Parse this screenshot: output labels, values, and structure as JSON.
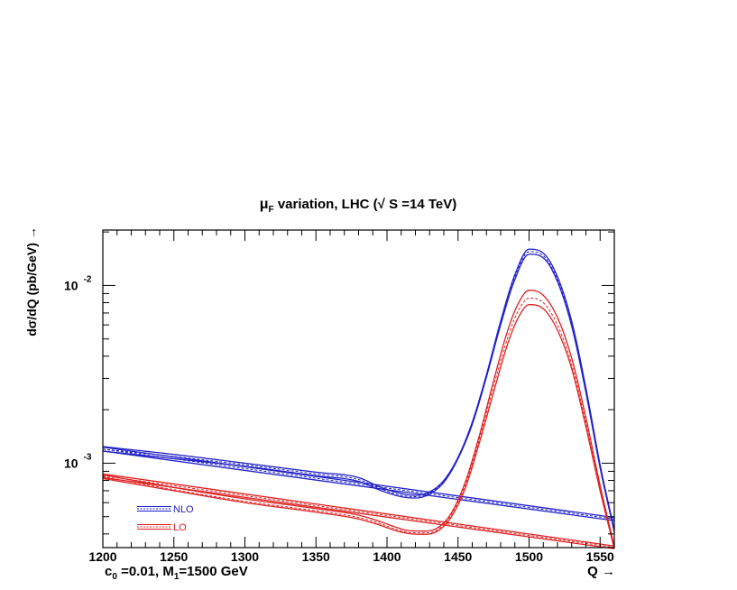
{
  "chart_data": {
    "type": "line",
    "title": {
      "mu": "μ",
      "mu_sub": "F",
      "text": " variation,  LHC (",
      "sqrt": "√",
      "s_text": " S =14 TeV)"
    },
    "ylabel": "dσ/dQ (pb/GeV) →",
    "xlabel": "Q →",
    "annotation": {
      "c": "c",
      "c_sub": "0",
      "c_text": " =0.01,  M",
      "m_sub": "1",
      "m_text": "=1500 GeV"
    },
    "xlim": [
      1200,
      1560
    ],
    "ylim": [
      0.000335,
      0.0205
    ],
    "yscale": "log",
    "x_ticks": [
      "1200",
      "1250",
      "1300",
      "1350",
      "1400",
      "1450",
      "1500",
      "1550"
    ],
    "y_ticks": [
      {
        "value": 0.01,
        "base": "10",
        "exp": "-2"
      },
      {
        "value": 0.001,
        "base": "10",
        "exp": "-3"
      }
    ],
    "legend": [
      {
        "label": "NLO",
        "color": "#2020c8"
      },
      {
        "label": "LO",
        "color": "#e02020"
      }
    ],
    "colors": {
      "nlo": "#2020c8",
      "lo": "#e02020"
    },
    "series": [
      {
        "name": "NLO",
        "group": "signal",
        "color": "#2020c8",
        "style": "solid",
        "x": [
          1200,
          1250,
          1300,
          1350,
          1380,
          1395,
          1410,
          1420,
          1430,
          1440,
          1450,
          1460,
          1470,
          1480,
          1490,
          1500,
          1510,
          1520,
          1530,
          1540,
          1550,
          1560
        ],
        "y": [
          0.00124,
          0.00112,
          0.001,
          0.00089,
          0.00083,
          0.000735,
          0.000675,
          0.00066,
          0.00069,
          0.0008,
          0.00108,
          0.0017,
          0.00315,
          0.0063,
          0.0115,
          0.016,
          0.0152,
          0.0112,
          0.0063,
          0.00265,
          0.00098,
          0.00042
        ]
      },
      {
        "name": "NLO",
        "group": "signal",
        "color": "#2020c8",
        "style": "dashed",
        "x": [
          1200,
          1250,
          1300,
          1350,
          1380,
          1395,
          1410,
          1420,
          1430,
          1440,
          1450,
          1460,
          1470,
          1480,
          1490,
          1500,
          1510,
          1520,
          1530,
          1540,
          1550,
          1560
        ],
        "y": [
          0.0012,
          0.00109,
          0.00098,
          0.00087,
          0.00081,
          0.00072,
          0.00066,
          0.000648,
          0.00068,
          0.00079,
          0.00107,
          0.00167,
          0.0031,
          0.0062,
          0.0112,
          0.0155,
          0.0147,
          0.0108,
          0.0061,
          0.00258,
          0.00096,
          0.00042
        ]
      },
      {
        "name": "NLO",
        "group": "signal",
        "color": "#2020c8",
        "style": "solid",
        "x": [
          1200,
          1250,
          1300,
          1350,
          1380,
          1395,
          1410,
          1420,
          1430,
          1440,
          1450,
          1460,
          1470,
          1480,
          1490,
          1500,
          1510,
          1520,
          1530,
          1540,
          1550,
          1560
        ],
        "y": [
          0.00117,
          0.00106,
          0.00096,
          0.00085,
          0.00079,
          0.000705,
          0.000648,
          0.000637,
          0.00067,
          0.00078,
          0.00106,
          0.00165,
          0.00305,
          0.006,
          0.0108,
          0.015,
          0.0143,
          0.0105,
          0.0059,
          0.0025,
          0.00094,
          0.00041
        ]
      },
      {
        "name": "NLO",
        "group": "background",
        "color": "#2020c8",
        "style": "solid",
        "x": [
          1200,
          1560
        ],
        "y": [
          0.00123,
          0.000495
        ]
      },
      {
        "name": "NLO",
        "group": "background",
        "color": "#2020c8",
        "style": "dashed",
        "x": [
          1200,
          1560
        ],
        "y": [
          0.0012,
          0.000485
        ]
      },
      {
        "name": "NLO",
        "group": "background",
        "color": "#2020c8",
        "style": "solid",
        "x": [
          1200,
          1560
        ],
        "y": [
          0.00117,
          0.000475
        ]
      },
      {
        "name": "LO",
        "group": "signal",
        "color": "#e02020",
        "style": "solid",
        "x": [
          1200,
          1250,
          1300,
          1350,
          1380,
          1395,
          1405,
          1415,
          1425,
          1435,
          1445,
          1455,
          1465,
          1475,
          1485,
          1492,
          1500,
          1510,
          1520,
          1530,
          1540,
          1550,
          1560
        ],
        "y": [
          0.00086,
          0.00073,
          0.00063,
          0.000555,
          0.00051,
          0.00047,
          0.00044,
          0.000418,
          0.000415,
          0.00043,
          0.00052,
          0.00078,
          0.00143,
          0.0029,
          0.0056,
          0.0078,
          0.0094,
          0.0088,
          0.0066,
          0.0039,
          0.0018,
          0.00075,
          0.00034
        ]
      },
      {
        "name": "LO",
        "group": "signal",
        "color": "#e02020",
        "style": "dashed",
        "x": [
          1200,
          1250,
          1300,
          1350,
          1380,
          1395,
          1405,
          1415,
          1425,
          1435,
          1445,
          1455,
          1465,
          1475,
          1485,
          1492,
          1500,
          1510,
          1520,
          1530,
          1540,
          1550,
          1560
        ],
        "y": [
          0.00084,
          0.00071,
          0.00061,
          0.00054,
          0.000495,
          0.000458,
          0.000428,
          0.000408,
          0.000405,
          0.00042,
          0.00051,
          0.00075,
          0.00137,
          0.0027,
          0.0051,
          0.0071,
          0.0085,
          0.008,
          0.006,
          0.0036,
          0.00168,
          0.00072,
          0.00034
        ]
      },
      {
        "name": "LO",
        "group": "signal",
        "color": "#e02020",
        "style": "solid",
        "x": [
          1200,
          1250,
          1300,
          1350,
          1380,
          1395,
          1405,
          1415,
          1425,
          1435,
          1445,
          1455,
          1465,
          1475,
          1485,
          1492,
          1500,
          1510,
          1520,
          1530,
          1540,
          1550,
          1560
        ],
        "y": [
          0.00082,
          0.0007,
          0.0006,
          0.00053,
          0.000485,
          0.000448,
          0.00042,
          0.000402,
          0.000398,
          0.000412,
          0.000495,
          0.00072,
          0.0013,
          0.0025,
          0.0047,
          0.0065,
          0.0078,
          0.0074,
          0.0056,
          0.0034,
          0.0016,
          0.0007,
          0.00033
        ]
      },
      {
        "name": "LO",
        "group": "background",
        "color": "#e02020",
        "style": "solid",
        "x": [
          1200,
          1560
        ],
        "y": [
          0.00087,
          0.000342
        ]
      },
      {
        "name": "LO",
        "group": "background",
        "color": "#e02020",
        "style": "dashed",
        "x": [
          1200,
          1560
        ],
        "y": [
          0.00085,
          0.000336
        ]
      },
      {
        "name": "LO",
        "group": "background",
        "color": "#e02020",
        "style": "solid",
        "x": [
          1200,
          1560
        ],
        "y": [
          0.00083,
          0.00033
        ]
      }
    ]
  }
}
